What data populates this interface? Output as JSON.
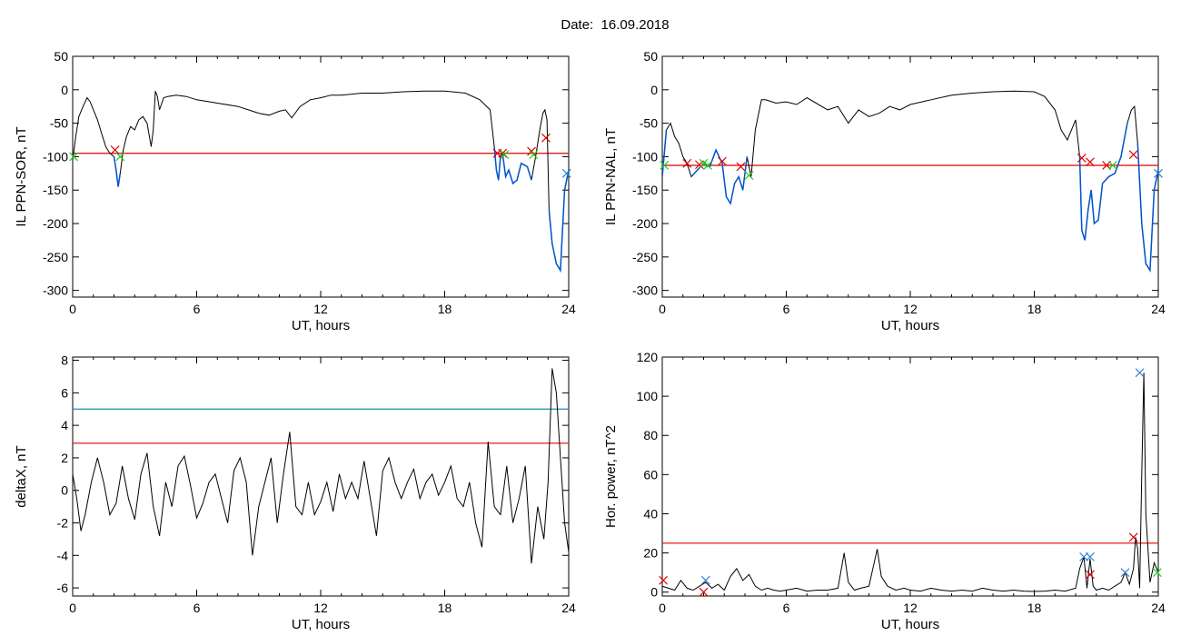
{
  "title": "Date:  16.09.2018",
  "colors": {
    "axis": "#000000",
    "threshold_red": "#e00000",
    "threshold_blue": "#1a8fa8",
    "trace": "#000000",
    "highlight": "#0055cc",
    "marker_red": "#dd0000",
    "marker_green": "#22cc22",
    "marker_blue": "#2a7fd4"
  },
  "chart_data": [
    {
      "type": "line",
      "xlabel": "UT, hours",
      "ylabel": "IL PPN-SOR, nT",
      "xlim": [
        0,
        24
      ],
      "ylim": [
        -310,
        50
      ],
      "xticks": [
        0,
        6,
        12,
        18,
        24
      ],
      "yticks": [
        50,
        0,
        -50,
        -100,
        -150,
        -200,
        -250,
        -300
      ],
      "threshold": {
        "value": -95,
        "color": "#e00000"
      },
      "series": [
        {
          "x": [
            0,
            0.15,
            0.3,
            0.5,
            0.7,
            0.85,
            1.0,
            1.2,
            1.4,
            1.6,
            1.8,
            2.0,
            2.1,
            2.2,
            2.3,
            2.45,
            2.6,
            2.8,
            3.0,
            3.2,
            3.4,
            3.6,
            3.8,
            3.9,
            4.0,
            4.1,
            4.2,
            4.4,
            4.6,
            5,
            5.5,
            6,
            7,
            8,
            8.5,
            9,
            9.5,
            10,
            10.3,
            10.6,
            11,
            11.5,
            12,
            12.5,
            13,
            14,
            15,
            16,
            17,
            18,
            19,
            19.7,
            20.2,
            20.4,
            20.5,
            20.6,
            20.7,
            20.8,
            20.95,
            21.1,
            21.3,
            21.5,
            21.7,
            22.0,
            22.2,
            22.4,
            22.6,
            22.75,
            22.85,
            22.95,
            23.05,
            23.2,
            23.4,
            23.6,
            23.8,
            24.0
          ],
          "y": [
            -105,
            -70,
            -40,
            -25,
            -12,
            -18,
            -30,
            -45,
            -65,
            -85,
            -95,
            -100,
            -120,
            -145,
            -125,
            -90,
            -70,
            -55,
            -60,
            -45,
            -40,
            -50,
            -85,
            -60,
            -2,
            -10,
            -30,
            -12,
            -10,
            -8,
            -10,
            -15,
            -20,
            -25,
            -30,
            -35,
            -38,
            -32,
            -30,
            -42,
            -25,
            -15,
            -12,
            -8,
            -8,
            -5,
            -5,
            -3,
            -2,
            -2,
            -5,
            -15,
            -30,
            -85,
            -120,
            -135,
            -100,
            -95,
            -130,
            -120,
            -140,
            -135,
            -110,
            -115,
            -135,
            -100,
            -60,
            -35,
            -30,
            -45,
            -180,
            -230,
            -260,
            -270,
            -150,
            -120
          ],
          "highlight_segments": [
            [
              2.0,
              2.4
            ],
            [
              20.4,
              22.3
            ],
            [
              23.0,
              24.0
            ]
          ]
        }
      ],
      "markers": [
        {
          "x": 2.05,
          "y": -90,
          "color": "#dd0000",
          "shape": "x"
        },
        {
          "x": 0.05,
          "y": -100,
          "color": "#22cc22",
          "shape": "x"
        },
        {
          "x": 2.3,
          "y": -100,
          "color": "#22cc22",
          "shape": "x"
        },
        {
          "x": 20.55,
          "y": -95,
          "color": "#dd0000",
          "shape": "x"
        },
        {
          "x": 20.8,
          "y": -95,
          "color": "#dd0000",
          "shape": "x"
        },
        {
          "x": 20.9,
          "y": -97,
          "color": "#22cc22",
          "shape": "x"
        },
        {
          "x": 22.2,
          "y": -92,
          "color": "#dd0000",
          "shape": "x"
        },
        {
          "x": 22.3,
          "y": -97,
          "color": "#22cc22",
          "shape": "x"
        },
        {
          "x": 22.9,
          "y": -72,
          "color": "#dd0000",
          "shape": "x"
        },
        {
          "x": 23.9,
          "y": -125,
          "color": "#2a7fd4",
          "shape": "x"
        }
      ]
    },
    {
      "type": "line",
      "xlabel": "UT, hours",
      "ylabel": "IL PPN-NAL, nT",
      "xlim": [
        0,
        24
      ],
      "ylim": [
        -310,
        50
      ],
      "xticks": [
        0,
        6,
        12,
        18,
        24
      ],
      "yticks": [
        50,
        0,
        -50,
        -100,
        -150,
        -200,
        -250,
        -300
      ],
      "threshold": {
        "value": -113,
        "color": "#e00000"
      },
      "series": [
        {
          "x": [
            0,
            0.2,
            0.4,
            0.6,
            0.8,
            1.0,
            1.2,
            1.4,
            1.7,
            2.0,
            2.3,
            2.6,
            2.9,
            3.1,
            3.3,
            3.5,
            3.7,
            3.9,
            4.1,
            4.3,
            4.5,
            4.8,
            5,
            5.5,
            6,
            6.5,
            7,
            8,
            8.5,
            9,
            9.5,
            10,
            10.5,
            11,
            11.5,
            12,
            13,
            14,
            15,
            16,
            17,
            18,
            18.5,
            19.0,
            19.3,
            19.6,
            20.0,
            20.2,
            20.3,
            20.45,
            20.6,
            20.75,
            20.9,
            21.1,
            21.3,
            21.6,
            21.9,
            22.2,
            22.5,
            22.7,
            22.85,
            23.0,
            23.2,
            23.4,
            23.6,
            23.8,
            24.0
          ],
          "y": [
            -130,
            -60,
            -50,
            -70,
            -80,
            -100,
            -110,
            -130,
            -120,
            -110,
            -115,
            -90,
            -110,
            -160,
            -170,
            -140,
            -130,
            -150,
            -100,
            -130,
            -60,
            -15,
            -15,
            -20,
            -18,
            -22,
            -12,
            -30,
            -25,
            -50,
            -30,
            -40,
            -35,
            -25,
            -30,
            -22,
            -15,
            -8,
            -5,
            -3,
            -2,
            -3,
            -10,
            -30,
            -60,
            -75,
            -45,
            -100,
            -210,
            -225,
            -180,
            -150,
            -200,
            -195,
            -140,
            -130,
            -125,
            -100,
            -50,
            -30,
            -25,
            -80,
            -200,
            -260,
            -270,
            -150,
            -120
          ],
          "highlight_segments": [
            [
              0,
              0.3
            ],
            [
              1.3,
              4.2
            ],
            [
              20.2,
              22.5
            ],
            [
              23.0,
              24.0
            ]
          ]
        }
      ],
      "markers": [
        {
          "x": 0.1,
          "y": -113,
          "color": "#22cc22",
          "shape": "x"
        },
        {
          "x": 1.2,
          "y": -110,
          "color": "#dd0000",
          "shape": "x"
        },
        {
          "x": 1.8,
          "y": -112,
          "color": "#dd0000",
          "shape": "x"
        },
        {
          "x": 2.0,
          "y": -110,
          "color": "#22cc22",
          "shape": "x"
        },
        {
          "x": 2.2,
          "y": -113,
          "color": "#22cc22",
          "shape": "x"
        },
        {
          "x": 2.9,
          "y": -107,
          "color": "#dd0000",
          "shape": "x"
        },
        {
          "x": 3.8,
          "y": -115,
          "color": "#dd0000",
          "shape": "x"
        },
        {
          "x": 4.2,
          "y": -128,
          "color": "#22cc22",
          "shape": "x"
        },
        {
          "x": 20.3,
          "y": -102,
          "color": "#dd0000",
          "shape": "x"
        },
        {
          "x": 20.7,
          "y": -108,
          "color": "#dd0000",
          "shape": "x"
        },
        {
          "x": 21.5,
          "y": -113,
          "color": "#dd0000",
          "shape": "x"
        },
        {
          "x": 21.8,
          "y": -113,
          "color": "#22cc22",
          "shape": "x"
        },
        {
          "x": 22.8,
          "y": -97,
          "color": "#dd0000",
          "shape": "x"
        },
        {
          "x": 24.0,
          "y": -125,
          "color": "#2a7fd4",
          "shape": "x"
        }
      ]
    },
    {
      "type": "line",
      "xlabel": "UT, hours",
      "ylabel": "deltaX, nT",
      "xlim": [
        0,
        24
      ],
      "ylim": [
        -6.5,
        8.2
      ],
      "xticks": [
        0,
        6,
        12,
        18,
        24
      ],
      "yticks": [
        8,
        6,
        4,
        2,
        0,
        -2,
        -4,
        -6
      ],
      "threshold": {
        "value": 2.9,
        "color": "#e00000"
      },
      "threshold2": {
        "value": 5.0,
        "color": "#1a8fa8"
      },
      "series": [
        {
          "x": [
            0,
            0.2,
            0.4,
            0.6,
            0.9,
            1.2,
            1.5,
            1.8,
            2.1,
            2.4,
            2.7,
            3.0,
            3.3,
            3.6,
            3.9,
            4.2,
            4.5,
            4.8,
            5.1,
            5.4,
            5.7,
            6.0,
            6.3,
            6.6,
            6.9,
            7.2,
            7.5,
            7.8,
            8.1,
            8.4,
            8.7,
            9.0,
            9.3,
            9.6,
            9.9,
            10.2,
            10.5,
            10.8,
            11.1,
            11.4,
            11.7,
            12.0,
            12.3,
            12.6,
            12.9,
            13.2,
            13.5,
            13.8,
            14.1,
            14.4,
            14.7,
            15.0,
            15.3,
            15.6,
            15.9,
            16.2,
            16.5,
            16.8,
            17.1,
            17.4,
            17.7,
            18.0,
            18.3,
            18.6,
            18.9,
            19.2,
            19.5,
            19.8,
            20.1,
            20.4,
            20.7,
            21.0,
            21.3,
            21.6,
            21.9,
            22.2,
            22.5,
            22.8,
            23.0,
            23.2,
            23.4,
            23.6,
            23.8,
            24.0
          ],
          "y": [
            1,
            -0.5,
            -2.5,
            -1.5,
            0.5,
            2,
            0.5,
            -1.5,
            -0.8,
            1.5,
            -0.5,
            -1.8,
            1,
            2.3,
            -1,
            -2.8,
            0.5,
            -1,
            1.5,
            2.1,
            0.3,
            -1.7,
            -0.8,
            0.5,
            1,
            -0.5,
            -2,
            1.2,
            2,
            0.5,
            -4,
            -1,
            0.5,
            2,
            -2,
            1,
            3.6,
            -1,
            -1.5,
            0.5,
            -1.5,
            -0.7,
            0.5,
            -1.3,
            1,
            -0.5,
            0.5,
            -0.5,
            1.8,
            -0.5,
            -2.8,
            1.2,
            2,
            0.5,
            -0.5,
            0.5,
            1.3,
            -0.5,
            0.5,
            1,
            -0.3,
            0.5,
            1.5,
            -0.5,
            -1,
            0.5,
            -2,
            -3.5,
            3,
            -1,
            -1.5,
            1.5,
            -2,
            -0.5,
            1.5,
            -4.5,
            -1,
            -3,
            0.5,
            7.5,
            6,
            2,
            -2,
            -3.8
          ]
        }
      ],
      "markers": []
    },
    {
      "type": "line",
      "xlabel": "UT, hours",
      "ylabel": "Hor. power, nT^2",
      "xlim": [
        0,
        24
      ],
      "ylim": [
        -2,
        120
      ],
      "xticks": [
        0,
        6,
        12,
        18,
        24
      ],
      "yticks": [
        120,
        100,
        80,
        60,
        40,
        20,
        0
      ],
      "threshold": {
        "value": 25,
        "color": "#e00000"
      },
      "series": [
        {
          "x": [
            0,
            0.3,
            0.6,
            0.9,
            1.2,
            1.5,
            1.8,
            2.1,
            2.4,
            2.7,
            3.0,
            3.3,
            3.6,
            3.9,
            4.2,
            4.5,
            4.8,
            5.1,
            5.4,
            5.7,
            6.0,
            6.5,
            7,
            7.5,
            8,
            8.5,
            8.8,
            9.0,
            9.3,
            9.6,
            10,
            10.4,
            10.6,
            10.9,
            11.3,
            11.7,
            12,
            12.5,
            13,
            13.5,
            14,
            14.5,
            15,
            15.5,
            16,
            16.5,
            17,
            17.5,
            18,
            18.5,
            19,
            19.5,
            20,
            20.2,
            20.4,
            20.55,
            20.7,
            20.85,
            21.0,
            21.3,
            21.6,
            21.9,
            22.2,
            22.4,
            22.6,
            22.8,
            22.9,
            23.0,
            23.1,
            23.2,
            23.3,
            23.4,
            23.6,
            23.8,
            24.0
          ],
          "y": [
            3,
            2,
            1,
            6,
            2,
            1,
            3,
            5,
            2,
            4,
            1,
            8,
            12,
            6,
            9,
            3,
            1,
            2,
            1,
            0.5,
            1,
            2,
            0.5,
            1,
            1,
            2,
            20,
            5,
            1,
            2,
            3,
            22,
            8,
            3,
            1,
            2,
            1,
            0.5,
            2,
            1,
            0.5,
            1,
            0.5,
            2,
            1,
            0.5,
            1,
            0.5,
            0.3,
            0.5,
            1,
            0.5,
            2,
            12,
            18,
            2,
            17,
            3,
            1,
            2,
            1,
            3,
            5,
            10,
            4,
            12,
            28,
            22,
            2,
            60,
            112,
            40,
            5,
            15,
            10
          ]
        }
      ],
      "markers": [
        {
          "x": 0.05,
          "y": 6,
          "color": "#dd0000",
          "shape": "x"
        },
        {
          "x": 2.1,
          "y": 6,
          "color": "#2a7fd4",
          "shape": "x"
        },
        {
          "x": 2.0,
          "y": 0,
          "color": "#dd0000",
          "shape": "x"
        },
        {
          "x": 20.4,
          "y": 18,
          "color": "#2a7fd4",
          "shape": "x"
        },
        {
          "x": 20.7,
          "y": 18,
          "color": "#2a7fd4",
          "shape": "x"
        },
        {
          "x": 20.7,
          "y": 9,
          "color": "#dd0000",
          "shape": "x"
        },
        {
          "x": 22.4,
          "y": 10,
          "color": "#2a7fd4",
          "shape": "x"
        },
        {
          "x": 22.8,
          "y": 28,
          "color": "#dd0000",
          "shape": "x"
        },
        {
          "x": 23.1,
          "y": 112,
          "color": "#2a7fd4",
          "shape": "x"
        },
        {
          "x": 23.95,
          "y": 10,
          "color": "#22cc22",
          "shape": "x"
        }
      ]
    }
  ]
}
